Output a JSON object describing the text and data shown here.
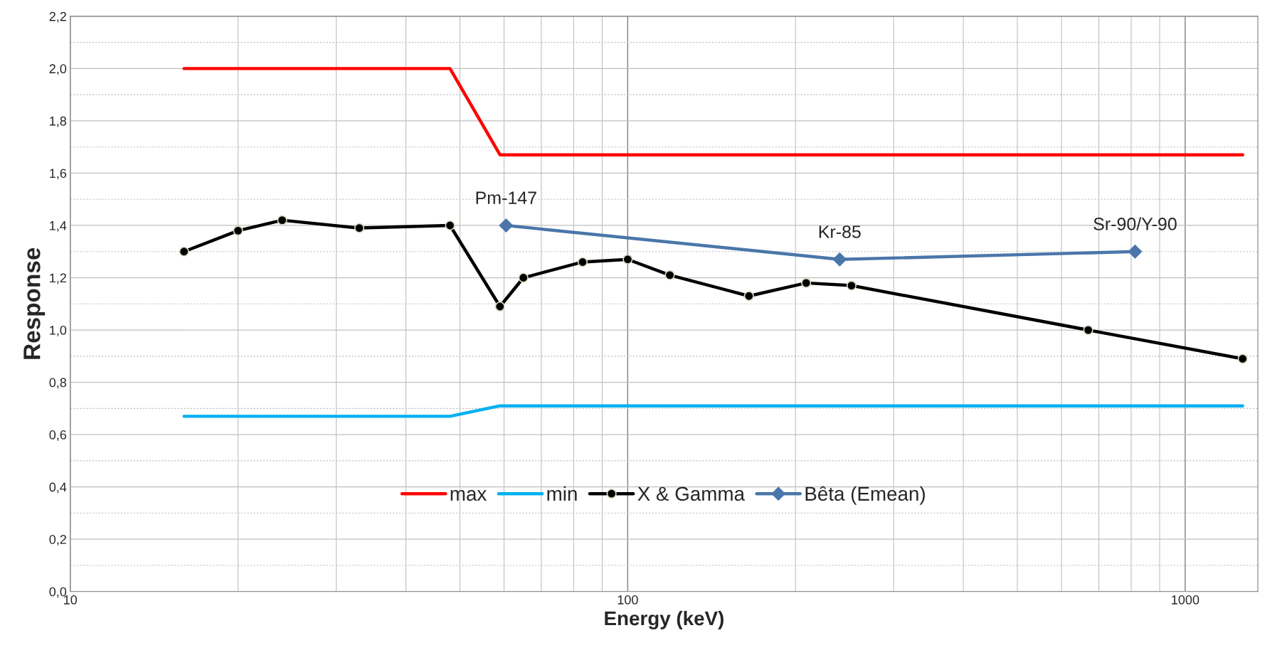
{
  "chart_data": {
    "type": "line",
    "xlabel": "Energy (keV)",
    "ylabel": "Response",
    "log": "x",
    "grid": true,
    "legend": "bottom",
    "xlim": [
      10,
      1350
    ],
    "xticks": [
      10,
      100,
      1000
    ],
    "ylim": [
      0,
      2.2
    ],
    "yticks": [
      {
        "value": 0,
        "label": "0,0"
      },
      {
        "value": 0.2,
        "label": "0,2"
      },
      {
        "value": 0.4,
        "label": "0,4"
      },
      {
        "value": 0.6,
        "label": "0,6"
      },
      {
        "value": 0.8,
        "label": "0,8"
      },
      {
        "value": 1.0,
        "label": "1,0"
      },
      {
        "value": 1.2,
        "label": "1,2"
      },
      {
        "value": 1.4,
        "label": "1,4"
      },
      {
        "value": 1.6,
        "label": "1,6"
      },
      {
        "value": 1.8,
        "label": "1,8"
      },
      {
        "value": 2.0,
        "label": "2,0"
      },
      {
        "value": 2.2,
        "label": "2,2"
      }
    ],
    "series": [
      {
        "name": "max",
        "color": "#ff0000",
        "marker": "none",
        "x": [
          16,
          48,
          59,
          1268
        ],
        "values": [
          2.0,
          2.0,
          1.67,
          1.67
        ]
      },
      {
        "name": "min",
        "color": "#00b0f0",
        "marker": "none",
        "x": [
          16,
          48,
          59,
          1268
        ],
        "values": [
          0.67,
          0.67,
          0.71,
          0.71
        ]
      },
      {
        "name": "X & Gamma",
        "color": "#000000",
        "marker": "circle",
        "x": [
          16,
          20,
          24,
          33,
          48,
          59,
          65,
          83,
          100,
          119,
          165,
          209,
          252,
          670,
          1268
        ],
        "values": [
          1.3,
          1.38,
          1.42,
          1.39,
          1.4,
          1.09,
          1.2,
          1.26,
          1.27,
          1.21,
          1.13,
          1.18,
          1.17,
          1.0,
          0.89
        ]
      },
      {
        "name": "Bêta (Emean)",
        "color": "#4a76aa",
        "marker": "diamond",
        "x": [
          60.5,
          240,
          813
        ],
        "values": [
          1.4,
          1.27,
          1.3
        ]
      }
    ],
    "annotations": [
      {
        "text": "Pm-147",
        "x": 60.5,
        "y": 1.4
      },
      {
        "text": "Kr-85",
        "x": 240,
        "y": 1.27
      },
      {
        "text": "Sr-90/Y-90",
        "x": 813,
        "y": 1.3
      }
    ]
  }
}
